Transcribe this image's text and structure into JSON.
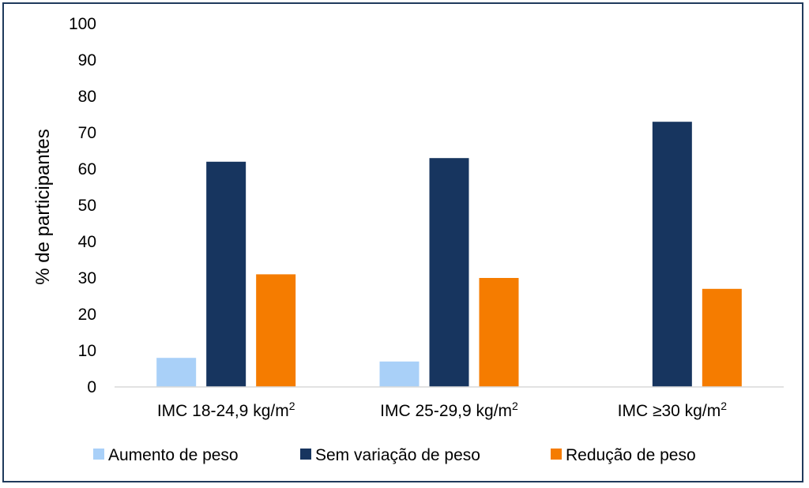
{
  "chart_data": {
    "type": "bar",
    "ylabel": "% de participantes",
    "xlabel": "",
    "ylim": [
      0,
      100
    ],
    "ytick_step": 10,
    "grid": false,
    "legend_position": "bottom",
    "categories": [
      {
        "label": "IMC 18-24,9 kg/m",
        "sup": "2"
      },
      {
        "label": "IMC 25-29,9 kg/m",
        "sup": "2"
      },
      {
        "label": "IMC ≥30 kg/m",
        "sup": "2"
      }
    ],
    "series": [
      {
        "name": "Aumento de peso",
        "color": "#a9d0f8",
        "values": [
          8,
          7,
          0
        ]
      },
      {
        "name": "Sem variação de peso",
        "color": "#17355f",
        "values": [
          62,
          63,
          73
        ]
      },
      {
        "name": "Redução de peso",
        "color": "#f57c00",
        "values": [
          31,
          30,
          27
        ]
      }
    ]
  },
  "frame": {
    "border_color": "#1f3a5c"
  }
}
